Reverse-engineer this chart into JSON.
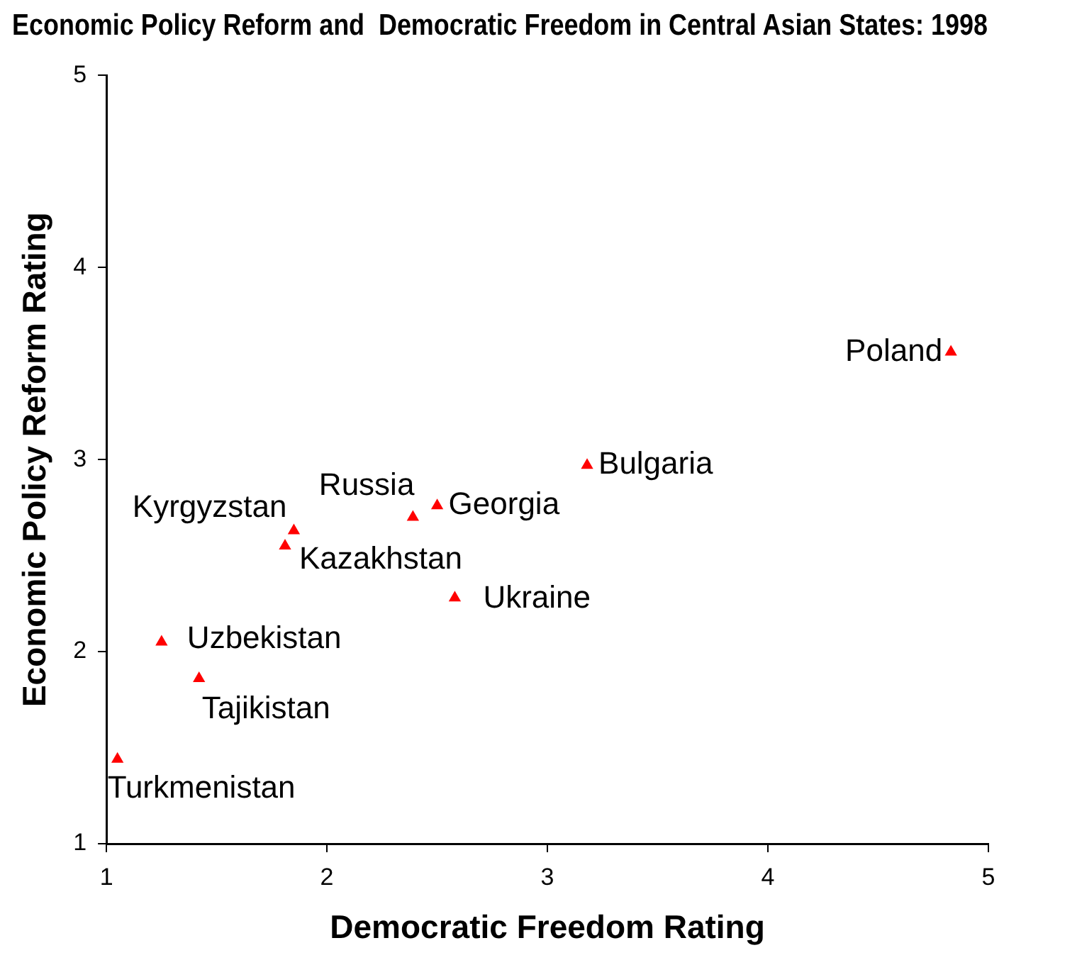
{
  "chart_data": {
    "type": "scatter",
    "title": "Economic Policy Reform and  Democratic Freedom in Central Asian States: 1998",
    "xlabel": "Democratic Freedom Rating",
    "ylabel": "Economic Policy Reform Rating",
    "x": [
      4.83,
      3.18,
      2.5,
      2.39,
      2.58,
      1.85,
      1.81,
      1.25,
      1.42,
      1.05
    ],
    "series": [
      {
        "color": "#ff0000",
        "values": [
          3.56,
          2.97,
          2.76,
          2.7,
          2.28,
          2.63,
          2.55,
          2.05,
          1.86,
          1.44
        ]
      }
    ],
    "marker": "triangle",
    "grid": false,
    "legend": false,
    "xlim": [
      1,
      5
    ],
    "xticks": [
      1,
      2,
      3,
      4,
      5
    ],
    "ylim": [
      1,
      5
    ],
    "yticks": [
      1,
      2,
      3,
      4,
      5
    ],
    "annotations": [
      {
        "text": "Poland",
        "x": 4.83,
        "y": 3.56
      },
      {
        "text": "Bulgaria",
        "x": 3.18,
        "y": 2.97
      },
      {
        "text": "Georgia",
        "x": 2.5,
        "y": 2.76
      },
      {
        "text": "Russia",
        "x": 2.39,
        "y": 2.7
      },
      {
        "text": "Ukraine",
        "x": 2.58,
        "y": 2.28
      },
      {
        "text": "Kyrgyzstan",
        "x": 1.85,
        "y": 2.63
      },
      {
        "text": "Kazakhstan",
        "x": 1.81,
        "y": 2.55
      },
      {
        "text": "Uzbekistan",
        "x": 1.25,
        "y": 2.05
      },
      {
        "text": "Tajikistan",
        "x": 1.42,
        "y": 1.86
      },
      {
        "text": "Turkmenistan",
        "x": 1.05,
        "y": 1.44
      }
    ]
  }
}
